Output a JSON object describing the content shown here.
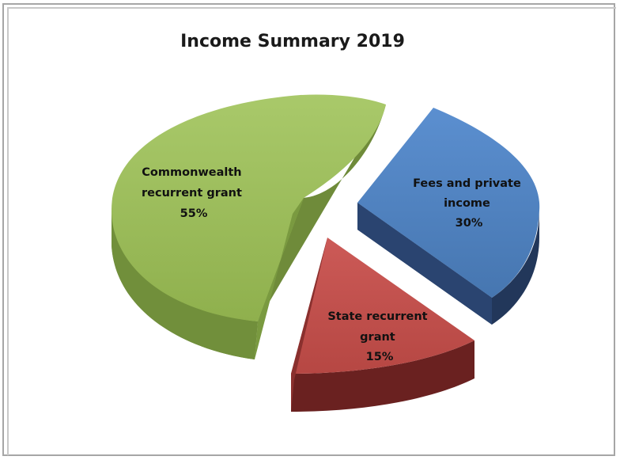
{
  "chart_data": {
    "type": "pie",
    "title": "Income Summary 2019",
    "slices": [
      {
        "label_lines": [
          "Commonwealth",
          "recurrent grant",
          "55%"
        ],
        "value": 55,
        "color": "#9bbb59",
        "side": "#6f8b3a",
        "exploded": false
      },
      {
        "label_lines": [
          "Fees and private",
          "income",
          "30%"
        ],
        "value": 30,
        "color": "#4f81bd",
        "side": "#22375a",
        "exploded": true
      },
      {
        "label_lines": [
          "State recurrent",
          "grant",
          "15%"
        ],
        "value": 15,
        "color": "#c0504d",
        "side": "#6a2120",
        "exploded": true
      }
    ],
    "legend": "none",
    "style": "3d-exploded"
  }
}
